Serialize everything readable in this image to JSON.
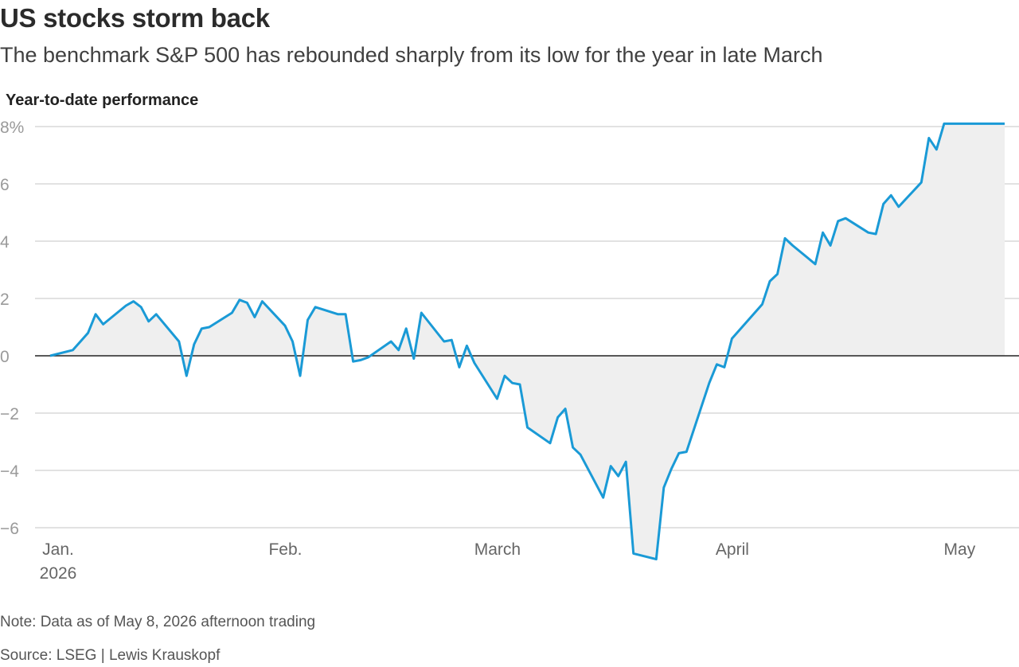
{
  "header": {
    "title": "US stocks storm back",
    "subtitle": "The benchmark S&P 500 has rebounded sharply from its low for the year in late March"
  },
  "footer": {
    "note": "Note: Data as of May 8, 2026 afternoon trading",
    "source": "Source: LSEG | Lewis Krauskopf"
  },
  "colors": {
    "line": "#1a9ad6",
    "area": "#efefef",
    "grid": "#d9d9d9",
    "zero": "#222222"
  },
  "chart_data": {
    "type": "area",
    "title": "US stocks storm back",
    "subtitle": "The benchmark S&P 500 has rebounded sharply from its low for the year in late March",
    "ylabel": "Year-to-date performance",
    "xlabel": "",
    "ylim": [
      -6.5,
      8.2
    ],
    "yticks": [
      {
        "value": 8,
        "label": "8%"
      },
      {
        "value": 6,
        "label": "6"
      },
      {
        "value": 4,
        "label": "4"
      },
      {
        "value": 2,
        "label": "2"
      },
      {
        "value": 0,
        "label": "0"
      },
      {
        "value": -2,
        "label": "−2"
      },
      {
        "value": -4,
        "label": "−4"
      },
      {
        "value": -6,
        "label": "−6"
      }
    ],
    "xlim": [
      "2026-01-01",
      "2026-05-10"
    ],
    "xticks": [
      {
        "date": "2026-01-02",
        "label": "Jan.",
        "sublabel": "2026"
      },
      {
        "date": "2026-02-01",
        "label": "Feb."
      },
      {
        "date": "2026-03-01",
        "label": "March"
      },
      {
        "date": "2026-04-01",
        "label": "April"
      },
      {
        "date": "2026-05-01",
        "label": "May"
      }
    ],
    "grid": true,
    "series": [
      {
        "x": [
          "2026-01-02",
          "2026-01-05",
          "2026-01-06",
          "2026-01-07",
          "2026-01-08",
          "2026-01-09",
          "2026-01-12",
          "2026-01-13",
          "2026-01-14",
          "2026-01-15",
          "2026-01-16",
          "2026-01-19",
          "2026-01-20",
          "2026-01-21",
          "2026-01-22",
          "2026-01-23",
          "2026-01-26",
          "2026-01-27",
          "2026-01-28",
          "2026-01-29",
          "2026-01-30",
          "2026-02-02",
          "2026-02-03",
          "2026-02-04",
          "2026-02-05",
          "2026-02-06",
          "2026-02-09",
          "2026-02-10",
          "2026-02-11",
          "2026-02-12",
          "2026-02-13",
          "2026-02-16",
          "2026-02-17",
          "2026-02-18",
          "2026-02-19",
          "2026-02-20",
          "2026-02-23",
          "2026-02-24",
          "2026-02-25",
          "2026-02-26",
          "2026-02-27",
          "2026-03-02",
          "2026-03-03",
          "2026-03-04",
          "2026-03-05",
          "2026-03-06",
          "2026-03-09",
          "2026-03-10",
          "2026-03-11",
          "2026-03-12",
          "2026-03-13",
          "2026-03-16",
          "2026-03-17",
          "2026-03-18",
          "2026-03-19",
          "2026-03-20",
          "2026-03-23",
          "2026-03-24",
          "2026-03-25",
          "2026-03-26",
          "2026-03-27",
          "2026-03-30",
          "2026-03-31",
          "2026-04-01",
          "2026-04-02",
          "2026-04-06",
          "2026-04-07",
          "2026-04-08",
          "2026-04-09",
          "2026-04-10",
          "2026-04-13",
          "2026-04-14",
          "2026-04-15",
          "2026-04-16",
          "2026-04-17",
          "2026-04-20",
          "2026-04-21",
          "2026-04-22",
          "2026-04-23",
          "2026-04-24",
          "2026-04-27",
          "2026-04-28",
          "2026-04-29",
          "2026-04-30",
          "2026-05-01",
          "2026-05-04",
          "2026-05-05",
          "2026-05-06",
          "2026-05-07",
          "2026-05-08"
        ],
        "y": [
          0.0,
          0.2,
          0.5,
          0.8,
          1.45,
          1.1,
          1.75,
          1.9,
          1.7,
          1.2,
          1.45,
          0.5,
          -0.7,
          0.4,
          0.95,
          1.0,
          1.5,
          1.95,
          1.85,
          1.35,
          1.9,
          1.05,
          0.5,
          -0.7,
          1.25,
          1.7,
          1.45,
          1.45,
          -0.2,
          -0.15,
          -0.05,
          0.5,
          0.2,
          0.95,
          -0.1,
          1.5,
          0.5,
          0.55,
          -0.4,
          0.35,
          -0.25,
          -1.5,
          -0.7,
          -0.95,
          -1.0,
          -2.5,
          -3.05,
          -2.15,
          -1.85,
          -3.2,
          -3.45,
          -4.95,
          -3.85,
          -4.2,
          -3.7,
          -6.9,
          -7.1,
          -4.6,
          -3.95,
          -3.4,
          -3.35,
          -0.95,
          -0.3,
          -0.4,
          0.6,
          1.8,
          2.6,
          2.85,
          4.1,
          3.85,
          3.2,
          4.3,
          3.85,
          4.7,
          4.8,
          4.3,
          4.25,
          5.3,
          5.6,
          5.2,
          6.05,
          7.6,
          7.2,
          8.1,
          8.1,
          8.1,
          8.1,
          8.1,
          8.1,
          8.1
        ]
      }
    ]
  }
}
